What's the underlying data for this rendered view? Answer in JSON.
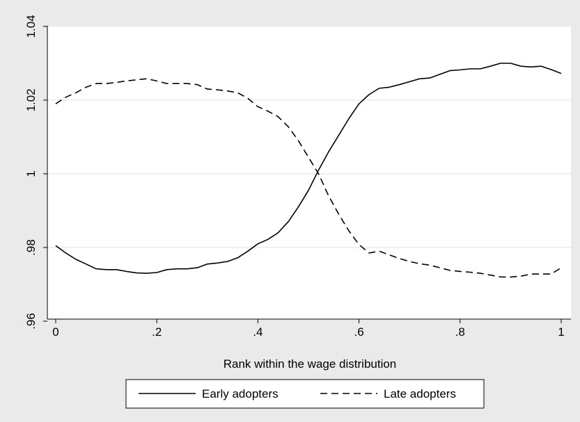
{
  "chart_data": {
    "type": "line",
    "title": "",
    "xlabel": "Rank within the wage distribution",
    "ylabel": "",
    "xlim": [
      0,
      1
    ],
    "ylim": [
      0.96,
      1.04
    ],
    "x_ticks": [
      0,
      0.2,
      0.4,
      0.6,
      0.8,
      1
    ],
    "x_tick_labels": [
      "0",
      ".2",
      ".4",
      ".6",
      ".8",
      "1"
    ],
    "y_ticks": [
      0.96,
      0.98,
      1,
      1.02,
      1.04
    ],
    "y_tick_labels": [
      ".96",
      ".98",
      "1",
      "1.02",
      "1.04"
    ],
    "grid": true,
    "legend_position": "bottom",
    "colors": {
      "background": "#eaeaea",
      "plot": "#ffffff",
      "grid": "#e6e6e6",
      "line": "#000000"
    },
    "x": [
      0,
      0.02,
      0.04,
      0.06,
      0.08,
      0.1,
      0.12,
      0.14,
      0.16,
      0.18,
      0.2,
      0.22,
      0.24,
      0.26,
      0.28,
      0.3,
      0.32,
      0.34,
      0.36,
      0.38,
      0.4,
      0.42,
      0.44,
      0.46,
      0.48,
      0.5,
      0.52,
      0.54,
      0.56,
      0.58,
      0.6,
      0.62,
      0.64,
      0.66,
      0.68,
      0.7,
      0.72,
      0.74,
      0.76,
      0.78,
      0.8,
      0.82,
      0.84,
      0.86,
      0.88,
      0.9,
      0.92,
      0.94,
      0.96,
      0.98,
      1.0
    ],
    "series": [
      {
        "name": "Early adopters",
        "style": "solid",
        "values": [
          0.9805,
          0.9785,
          0.9768,
          0.9755,
          0.9742,
          0.974,
          0.974,
          0.9735,
          0.9731,
          0.973,
          0.9732,
          0.974,
          0.9742,
          0.9742,
          0.9745,
          0.9755,
          0.9758,
          0.9762,
          0.9772,
          0.979,
          0.981,
          0.9822,
          0.984,
          0.987,
          0.991,
          0.9955,
          1.001,
          1.006,
          1.0105,
          1.015,
          1.019,
          1.0215,
          1.0232,
          1.0235,
          1.0242,
          1.025,
          1.0258,
          1.026,
          1.027,
          1.028,
          1.0282,
          1.0285,
          1.0285,
          1.0292,
          1.03,
          1.03,
          1.0292,
          1.029,
          1.0292,
          1.0283,
          1.0272
        ]
      },
      {
        "name": "Late adopters",
        "style": "dashed",
        "values": [
          1.019,
          1.0208,
          1.022,
          1.0235,
          1.0245,
          1.0245,
          1.0248,
          1.0252,
          1.0255,
          1.0258,
          1.0252,
          1.0245,
          1.0245,
          1.0245,
          1.0242,
          1.023,
          1.0228,
          1.0225,
          1.022,
          1.0205,
          1.0182,
          1.017,
          1.0155,
          1.0128,
          1.009,
          1.0045,
          1.0,
          0.994,
          0.989,
          0.9845,
          0.9808,
          0.9785,
          0.979,
          0.978,
          0.977,
          0.9762,
          0.9756,
          0.9752,
          0.9745,
          0.9738,
          0.9735,
          0.9733,
          0.973,
          0.9725,
          0.972,
          0.972,
          0.9722,
          0.9728,
          0.9728,
          0.9728,
          0.9745
        ]
      }
    ]
  }
}
